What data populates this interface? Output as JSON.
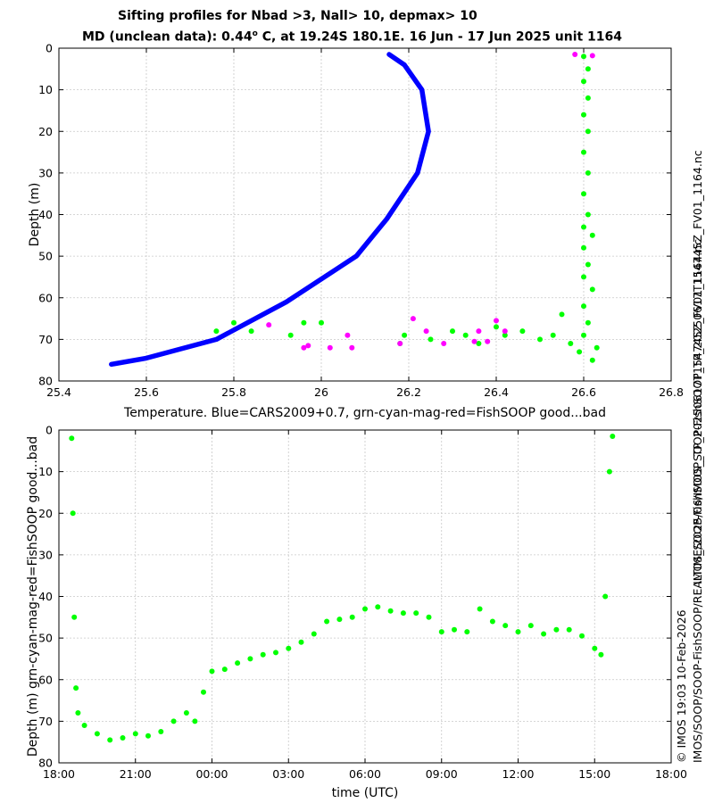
{
  "header": {
    "title_line1": "Sifting profiles for Nbad >3, Nall> 10, depmax> 10",
    "title_line2_pre": "MD (unclean data): 0.44",
    "title_line2_sup": "o",
    "title_line2_post": " C, at 19.24S 180.1E. 16 Jun - 17 Jun 2025 unit 1164"
  },
  "side_labels": {
    "filename": "IMOS_SOOP-FishSOOP_TP_20250617T154745Z_FV01_1164.nc",
    "timestamp": "© IMOS 19:03 10-Feb-2026",
    "path": "IMOS/SOOP/SOOP-FishSOOP/REALTIME/2025/06/IMOS_SOOP-FishSOOP_TP_20250617T154745Z_FV01_1164.nc"
  },
  "colors": {
    "cars": "#0000ff",
    "good": "#00ff00",
    "bad": "#ff00ff",
    "grid": "#c8c8c8"
  },
  "chart_data": [
    {
      "type": "scatter",
      "title": "",
      "xlabel": "Temperature. Blue=CARS2009+0.7, grn-cyan-mag-red=FishSOOP good...bad",
      "ylabel": "Depth (m)",
      "xlim": [
        25.4,
        26.8
      ],
      "ylim": [
        80,
        0
      ],
      "xticks": [
        "25.4",
        "25.6",
        "25.8",
        "26",
        "26.2",
        "26.4",
        "26.6",
        "26.8"
      ],
      "yticks": [
        "0",
        "10",
        "20",
        "30",
        "40",
        "50",
        "60",
        "70",
        "80"
      ],
      "grid": true,
      "series": [
        {
          "key": "cars",
          "style": "line",
          "points": [
            [
              26.155,
              1.5
            ],
            [
              26.19,
              4
            ],
            [
              26.23,
              10
            ],
            [
              26.245,
              20
            ],
            [
              26.22,
              30
            ],
            [
              26.15,
              41
            ],
            [
              26.08,
              50
            ],
            [
              25.92,
              61
            ],
            [
              25.76,
              70
            ],
            [
              25.6,
              74.5
            ],
            [
              25.52,
              76
            ]
          ]
        },
        {
          "key": "good",
          "style": "dots",
          "points": [
            [
              26.6,
              2
            ],
            [
              26.61,
              5
            ],
            [
              26.6,
              8
            ],
            [
              26.61,
              12
            ],
            [
              26.6,
              16
            ],
            [
              26.61,
              20
            ],
            [
              26.6,
              25
            ],
            [
              26.61,
              30
            ],
            [
              26.6,
              35
            ],
            [
              26.61,
              40
            ],
            [
              26.6,
              43
            ],
            [
              26.62,
              45
            ],
            [
              26.6,
              48
            ],
            [
              26.61,
              52
            ],
            [
              26.6,
              55
            ],
            [
              26.62,
              58
            ],
            [
              26.6,
              62
            ],
            [
              26.61,
              66
            ],
            [
              26.6,
              69
            ],
            [
              26.63,
              72
            ],
            [
              26.62,
              75
            ],
            [
              25.76,
              68
            ],
            [
              25.8,
              66
            ],
            [
              25.84,
              68
            ],
            [
              25.93,
              69
            ],
            [
              25.96,
              66
            ],
            [
              26.0,
              66
            ],
            [
              26.18,
              71
            ],
            [
              26.19,
              69
            ],
            [
              26.25,
              70
            ],
            [
              26.3,
              68
            ],
            [
              26.33,
              69
            ],
            [
              26.36,
              71
            ],
            [
              26.4,
              67
            ],
            [
              26.42,
              69
            ],
            [
              26.46,
              68
            ],
            [
              26.5,
              70
            ],
            [
              26.53,
              69
            ],
            [
              26.55,
              64
            ],
            [
              26.57,
              71
            ],
            [
              26.59,
              73
            ]
          ]
        },
        {
          "key": "bad",
          "style": "dots",
          "points": [
            [
              26.58,
              1.5
            ],
            [
              26.62,
              1.8
            ],
            [
              25.88,
              66.5
            ],
            [
              25.96,
              72
            ],
            [
              25.97,
              71.5
            ],
            [
              26.02,
              72
            ],
            [
              26.06,
              69
            ],
            [
              26.07,
              72
            ],
            [
              26.18,
              71
            ],
            [
              26.21,
              65
            ],
            [
              26.24,
              68
            ],
            [
              26.28,
              71
            ],
            [
              26.35,
              70.5
            ],
            [
              26.36,
              68
            ],
            [
              26.38,
              70.5
            ],
            [
              26.4,
              65.5
            ],
            [
              26.42,
              68
            ]
          ]
        }
      ]
    },
    {
      "type": "scatter",
      "title": "",
      "xlabel": "time (UTC)",
      "ylabel": "Depth (m) grn-cyan-mag-red=FishSOOP good...bad",
      "xlim": [
        "2025-06-16T18:00",
        "2025-06-17T18:00"
      ],
      "ylim": [
        80,
        0
      ],
      "xticks": [
        "18:00",
        "21:00",
        "00:00",
        "03:00",
        "06:00",
        "09:00",
        "12:00",
        "15:00",
        "18:00"
      ],
      "yticks": [
        "0",
        "10",
        "20",
        "30",
        "40",
        "50",
        "60",
        "70",
        "80"
      ],
      "grid": true,
      "series": [
        {
          "key": "good",
          "style": "dots",
          "points": [
            [
              "2025-06-16T18:30",
              2
            ],
            [
              "2025-06-16T18:33",
              20
            ],
            [
              "2025-06-16T18:36",
              45
            ],
            [
              "2025-06-16T18:40",
              62
            ],
            [
              "2025-06-16T18:45",
              68
            ],
            [
              "2025-06-16T19:00",
              71
            ],
            [
              "2025-06-16T19:30",
              73
            ],
            [
              "2025-06-16T20:00",
              74.5
            ],
            [
              "2025-06-16T20:30",
              74
            ],
            [
              "2025-06-16T21:00",
              73
            ],
            [
              "2025-06-16T21:30",
              73.5
            ],
            [
              "2025-06-16T22:00",
              72.5
            ],
            [
              "2025-06-16T22:30",
              70
            ],
            [
              "2025-06-16T23:00",
              68
            ],
            [
              "2025-06-16T23:20",
              70
            ],
            [
              "2025-06-16T23:40",
              63
            ],
            [
              "2025-06-17T00:00",
              58
            ],
            [
              "2025-06-17T00:30",
              57.5
            ],
            [
              "2025-06-17T01:00",
              56
            ],
            [
              "2025-06-17T01:30",
              55
            ],
            [
              "2025-06-17T02:00",
              54
            ],
            [
              "2025-06-17T02:30",
              53.5
            ],
            [
              "2025-06-17T03:00",
              52.5
            ],
            [
              "2025-06-17T03:30",
              51
            ],
            [
              "2025-06-17T04:00",
              49
            ],
            [
              "2025-06-17T04:30",
              46
            ],
            [
              "2025-06-17T05:00",
              45.5
            ],
            [
              "2025-06-17T05:30",
              45
            ],
            [
              "2025-06-17T06:00",
              43
            ],
            [
              "2025-06-17T06:30",
              42.5
            ],
            [
              "2025-06-17T07:00",
              43.5
            ],
            [
              "2025-06-17T07:30",
              44
            ],
            [
              "2025-06-17T08:00",
              44
            ],
            [
              "2025-06-17T08:30",
              45
            ],
            [
              "2025-06-17T09:00",
              48.5
            ],
            [
              "2025-06-17T09:30",
              48
            ],
            [
              "2025-06-17T10:00",
              48.5
            ],
            [
              "2025-06-17T10:30",
              43
            ],
            [
              "2025-06-17T11:00",
              46
            ],
            [
              "2025-06-17T11:30",
              47
            ],
            [
              "2025-06-17T12:00",
              48.5
            ],
            [
              "2025-06-17T12:30",
              47
            ],
            [
              "2025-06-17T13:00",
              49
            ],
            [
              "2025-06-17T13:30",
              48
            ],
            [
              "2025-06-17T14:00",
              48
            ],
            [
              "2025-06-17T14:30",
              49.5
            ],
            [
              "2025-06-17T15:00",
              52.5
            ],
            [
              "2025-06-17T15:15",
              54
            ],
            [
              "2025-06-17T15:25",
              40
            ],
            [
              "2025-06-17T15:35",
              10
            ],
            [
              "2025-06-17T15:42",
              1.5
            ]
          ]
        }
      ]
    }
  ]
}
